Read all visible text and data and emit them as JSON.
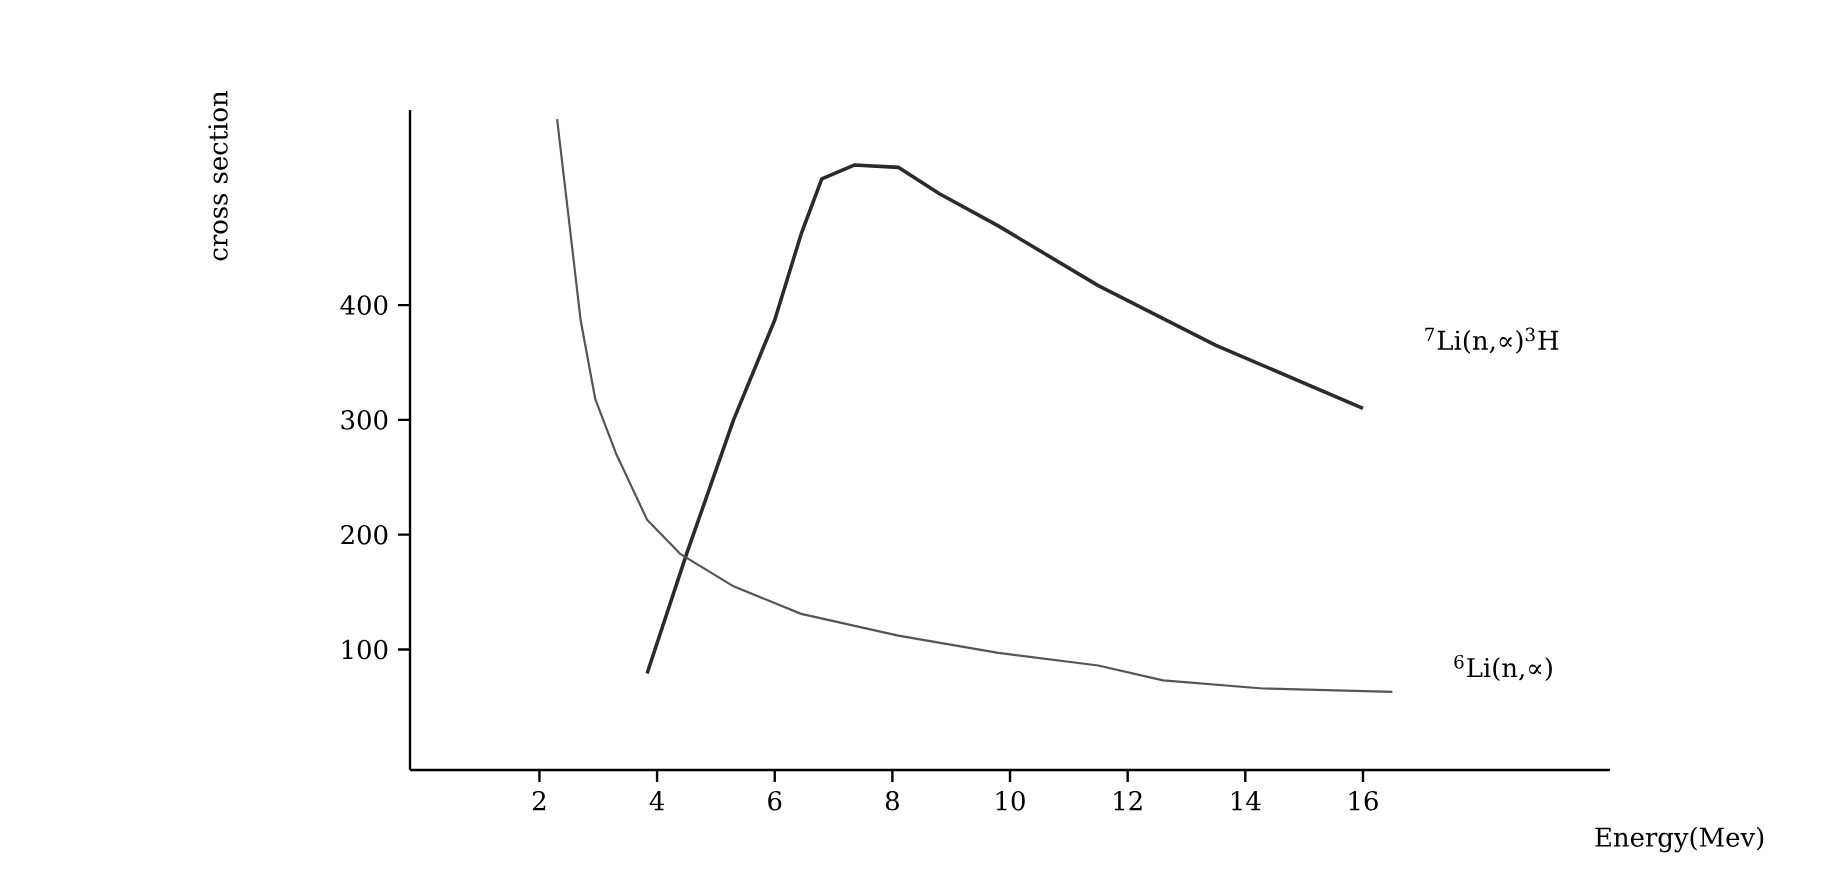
{
  "chart_data": {
    "type": "line",
    "xlabel": "Energy(Mev)",
    "ylabel": "cross section",
    "xlim": [
      -0.2,
      20.2
    ],
    "ylim": [
      -5,
      570
    ],
    "xticks": [
      2,
      4,
      6,
      8,
      10,
      12,
      14,
      16
    ],
    "yticks": [
      100,
      200,
      300,
      400
    ],
    "grid": false,
    "legend": false,
    "marker": "none",
    "line_style": "solid",
    "series": [
      {
        "name": "$^{7}$Li(n,∝)$^{3}$H",
        "color": "#2b2b2b",
        "x": [
          3.83,
          4.5,
          5.3,
          6.0,
          6.45,
          6.8,
          7.35,
          8.1,
          8.8,
          9.8,
          11.5,
          13.5,
          16
        ],
        "values": [
          79,
          183,
          300,
          387,
          462,
          510,
          522,
          520,
          497,
          469,
          417,
          365,
          310
        ]
      },
      {
        "name": "$^{6}$Li(n,∝)",
        "color": "#555555",
        "x": [
          2.3,
          2.5,
          2.7,
          2.95,
          3.3,
          3.83,
          4.4,
          5.3,
          6.45,
          8.1,
          9.8,
          11.5,
          12.6,
          14.3,
          16.5
        ],
        "values": [
          562,
          475,
          387,
          318,
          271,
          213,
          183,
          155,
          131,
          112,
          97,
          86,
          73,
          66,
          63
        ]
      }
    ]
  }
}
